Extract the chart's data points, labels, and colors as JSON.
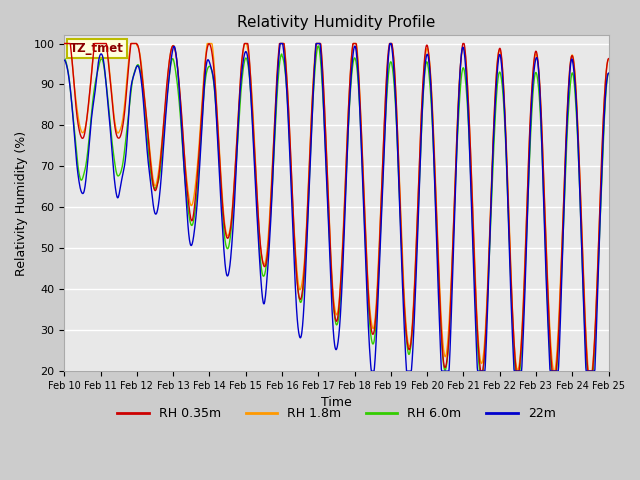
{
  "title": "Relativity Humidity Profile",
  "xlabel": "Time",
  "ylabel": "Relativity Humidity (%)",
  "ylim": [
    20,
    102
  ],
  "yticks": [
    20,
    30,
    40,
    50,
    60,
    70,
    80,
    90,
    100
  ],
  "colors": {
    "RH 0.35m": "#cc0000",
    "RH 1.8m": "#ff9900",
    "RH 6.0m": "#33cc00",
    "22m": "#0000cc"
  },
  "legend_labels": [
    "RH 0.35m",
    "RH 1.8m",
    "RH 6.0m",
    "22m"
  ],
  "annotation_text": "TZ_tmet",
  "annotation_color": "#8B0000",
  "annotation_bg": "#ffffdd",
  "annotation_border": "#bbbb00",
  "plot_bg": "#e8e8e8",
  "fig_bg": "#cccccc",
  "xtick_labels": [
    "Feb 10",
    "Feb 11",
    "Feb 12",
    "Feb 13",
    "Feb 14",
    "Feb 15",
    "Feb 16",
    "Feb 17",
    "Feb 18",
    "Feb 19",
    "Feb 20",
    "Feb 21",
    "Feb 22",
    "Feb 23",
    "Feb 24",
    "Feb 25"
  ]
}
